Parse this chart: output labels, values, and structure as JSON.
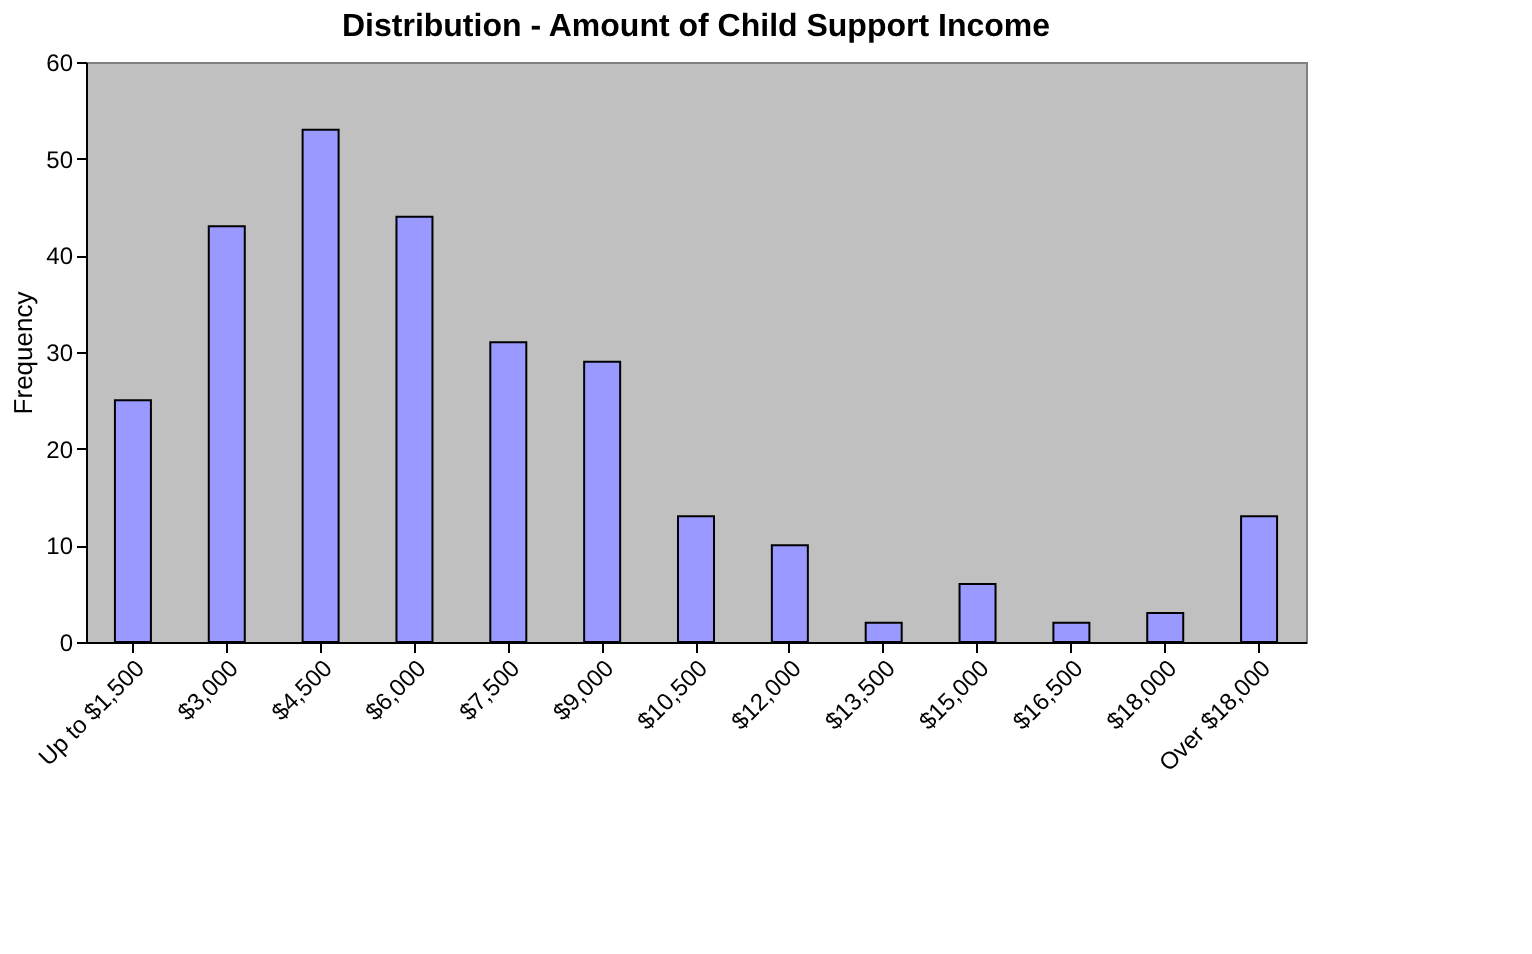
{
  "chart_data": {
    "type": "bar",
    "title": "Distribution - Amount of Child Support Income",
    "ylabel": "Frequency",
    "categories": [
      "Up to $1,500",
      "$3,000",
      "$4,500",
      "$6,000",
      "$7,500",
      "$9,000",
      "$10,500",
      "$12,000",
      "$13,500",
      "$15,000",
      "$16,500",
      "$18,000",
      "Over $18,000"
    ],
    "values": [
      25,
      43,
      53,
      44,
      31,
      29,
      13,
      10,
      2,
      6,
      2,
      3,
      13
    ],
    "color": "#9999ff",
    "ylim": [
      0,
      60
    ],
    "yticks": [
      0,
      10,
      20,
      30,
      40,
      50,
      60
    ],
    "grid": false
  }
}
